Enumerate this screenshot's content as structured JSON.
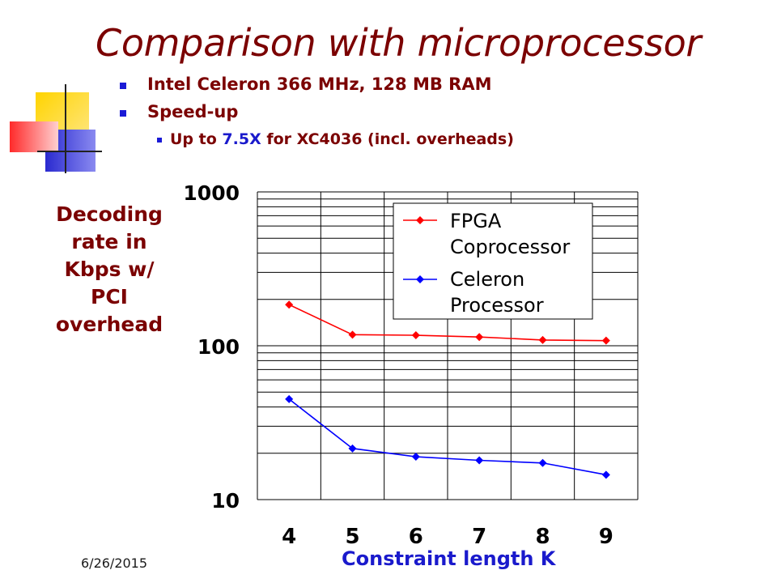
{
  "slide": {
    "title": "Comparison with microprocessor",
    "bullets": [
      {
        "text": "Intel Celeron 366 MHz, 128 MB RAM"
      },
      {
        "text": "Speed-up"
      }
    ],
    "sub_bullet": {
      "prefix": "Up to ",
      "highlight": "7.5X",
      "suffix": " for XC4036 (incl. overheads)"
    },
    "date": "6/26/2015",
    "colors": {
      "title": "#7b0000",
      "accent": "#1a1acc",
      "fpga": "#ff0000",
      "celeron": "#0000ff"
    }
  },
  "chart_data": {
    "type": "line",
    "xlabel": "Constraint length K",
    "ylabel": "Decoding rate in Kbps w/ PCI overhead",
    "ylabel_lines": [
      "Decoding",
      "rate in",
      "Kbps w/",
      "PCI",
      "overhead"
    ],
    "categories": [
      "4",
      "5",
      "6",
      "7",
      "8",
      "9"
    ],
    "y_scale": "log",
    "ylim": [
      10,
      1000
    ],
    "y_ticks": [
      "10",
      "100",
      "1000"
    ],
    "legend": "top-right",
    "series": [
      {
        "name": "FPGA Coprocessor",
        "name_lines": [
          "FPGA",
          "Coprocessor"
        ],
        "color": "#ff0000",
        "values": [
          185,
          118,
          117,
          114,
          109,
          108
        ]
      },
      {
        "name": "Celeron Processor",
        "name_lines": [
          "Celeron",
          "Processor"
        ],
        "color": "#0000ff",
        "values": [
          45,
          21.5,
          19,
          18,
          17.3,
          14.5
        ]
      }
    ]
  }
}
